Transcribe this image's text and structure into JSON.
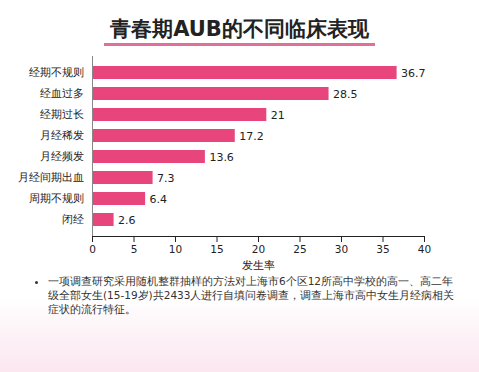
{
  "chart_data": {
    "type": "bar",
    "title": "青春期AUB的不同临床表现",
    "orientation": "horizontal",
    "categories": [
      "经期不规则",
      "经血过多",
      "经期过长",
      "月经稀发",
      "月经频发",
      "月经间期出血",
      "周期不规则",
      "闭经"
    ],
    "values": [
      36.7,
      28.5,
      21,
      17.2,
      13.6,
      7.3,
      6.4,
      2.6
    ],
    "color": "#e8457c",
    "x_label": "发生率",
    "xlim": [
      0,
      40
    ],
    "xticks": [
      0,
      5,
      10,
      15,
      20,
      25,
      30,
      35,
      40
    ],
    "grid": false,
    "data_labels": true,
    "annotations": [
      "一项调查研究采用随机整群抽样的方法对上海市6个区12所高中学校的高一、高二年级全部女生(15-19岁)共2433人进行自填问卷调查，调查上海市高中女生月经病相关症状的流行特征。"
    ]
  }
}
